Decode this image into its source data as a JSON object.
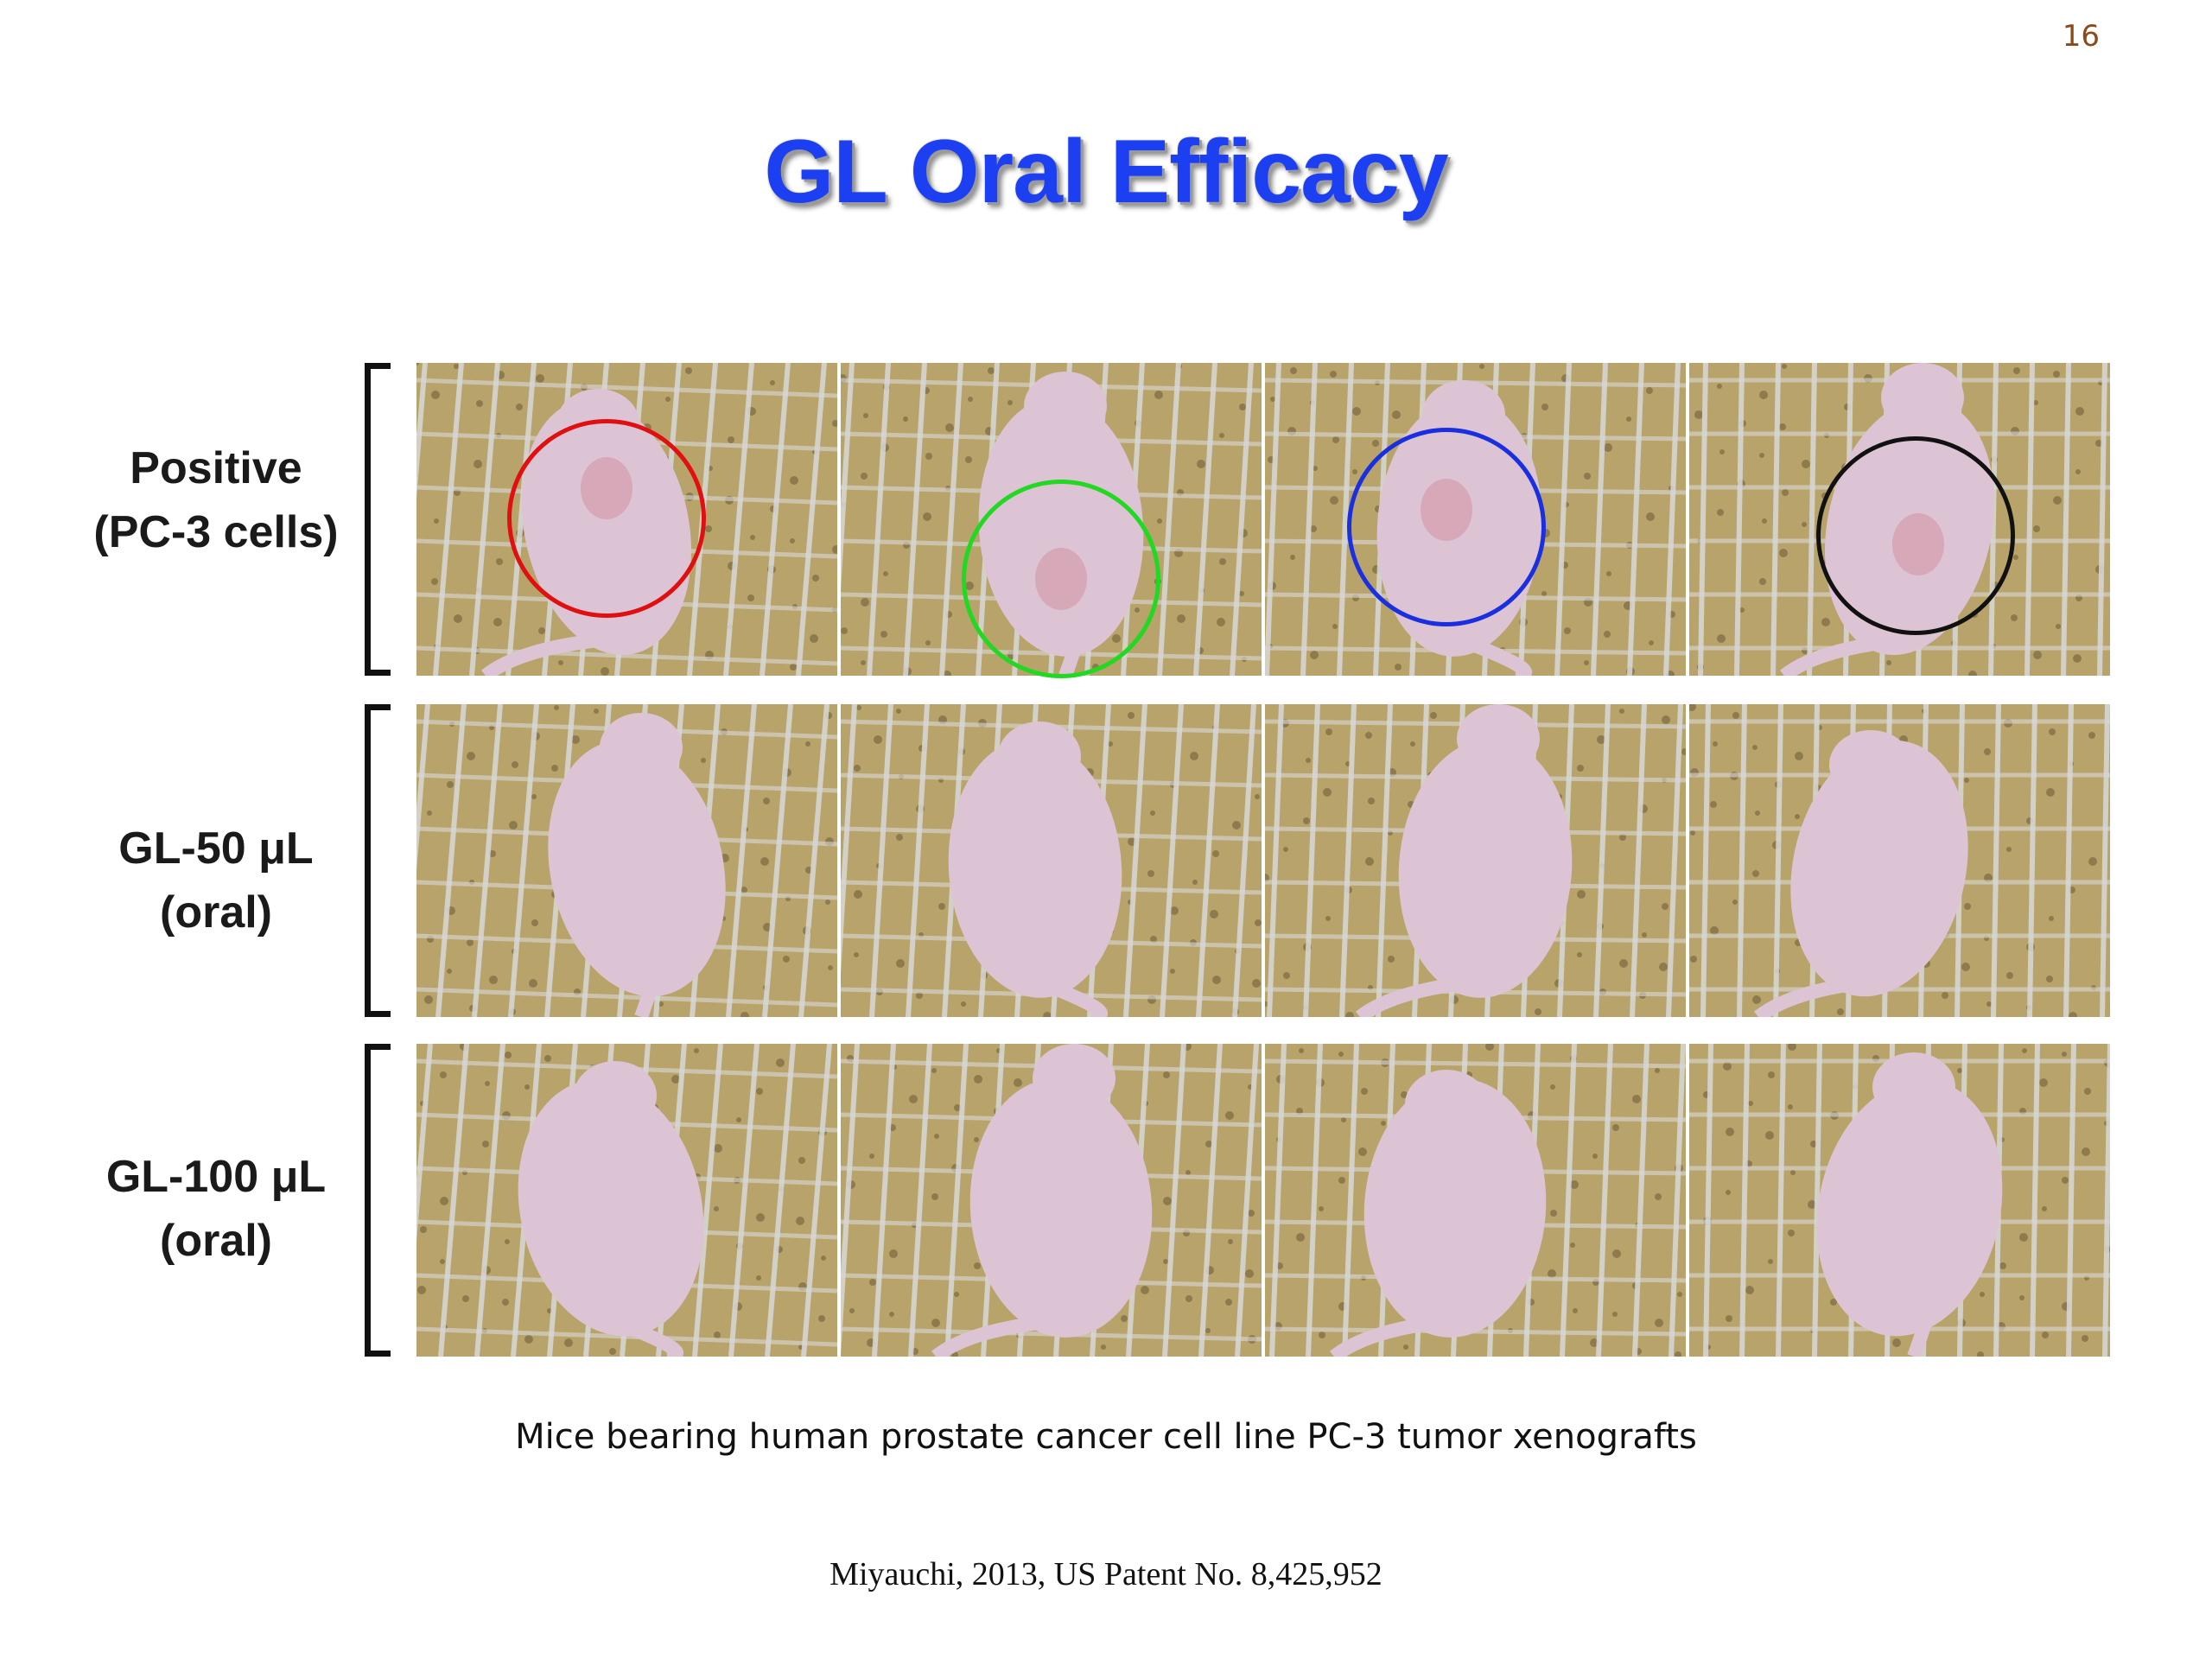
{
  "slide": {
    "page_number": "16",
    "title": "GL Oral Efficacy",
    "caption": "Mice bearing human prostate cancer cell line PC-3 tumor xenografts",
    "citation": "Miyauchi,  2013, US Patent No. 8,425,952"
  },
  "rows": [
    {
      "label_line1": "Positive",
      "label_line2": "(PC-3 cells)"
    },
    {
      "label_line1": "GL-50 μL",
      "label_line2": "(oral)"
    },
    {
      "label_line1": "GL-100 μL",
      "label_line2": "(oral)"
    }
  ],
  "tumor_circle_colors": [
    "#e01010",
    "#22d822",
    "#1a2fe0",
    "#111111"
  ],
  "photo_colors": {
    "bedding": "#b8a46a",
    "bedding_dark": "#6a5a34",
    "cage_bars": "#d8d8d8",
    "mouse": "#dcc4d4"
  }
}
